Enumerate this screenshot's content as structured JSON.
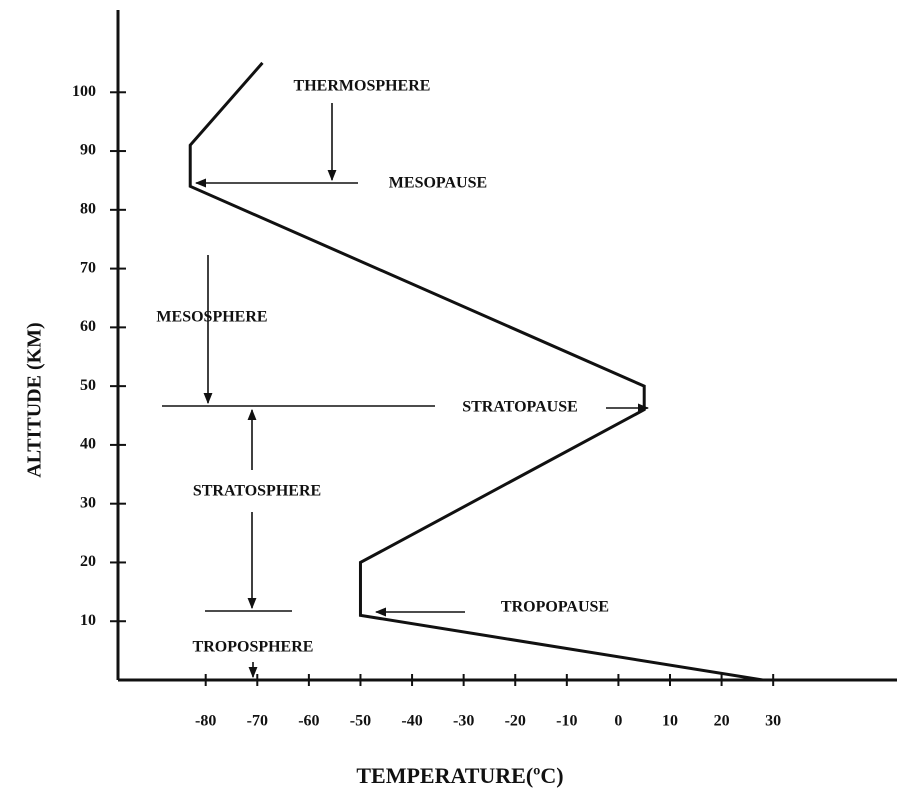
{
  "chart_data": {
    "type": "line",
    "x_label": "TEMPERATURE(ºC)",
    "y_label": "ALTITUDE (KM)",
    "x": [
      -69,
      -83,
      -83,
      5,
      5,
      -50,
      -50,
      28
    ],
    "values": [
      105,
      91,
      84,
      50,
      46,
      20,
      11,
      0
    ],
    "color": "#111111",
    "xlim": [
      -97,
      54
    ],
    "ylim": [
      0,
      114
    ],
    "xticks": [
      -80,
      -70,
      -60,
      -50,
      -40,
      -30,
      -20,
      -10,
      0,
      10,
      20,
      30
    ],
    "yticks": [
      10,
      20,
      30,
      40,
      50,
      60,
      70,
      80,
      90,
      100
    ],
    "annotations": [
      "THERMOSPHERE",
      "MESOPAUSE",
      "MESOSPHERE",
      "STRATOPAUSE",
      "STRATOSPHERE",
      "TROPOPAUSE",
      "TROPOSPHERE"
    ]
  }
}
